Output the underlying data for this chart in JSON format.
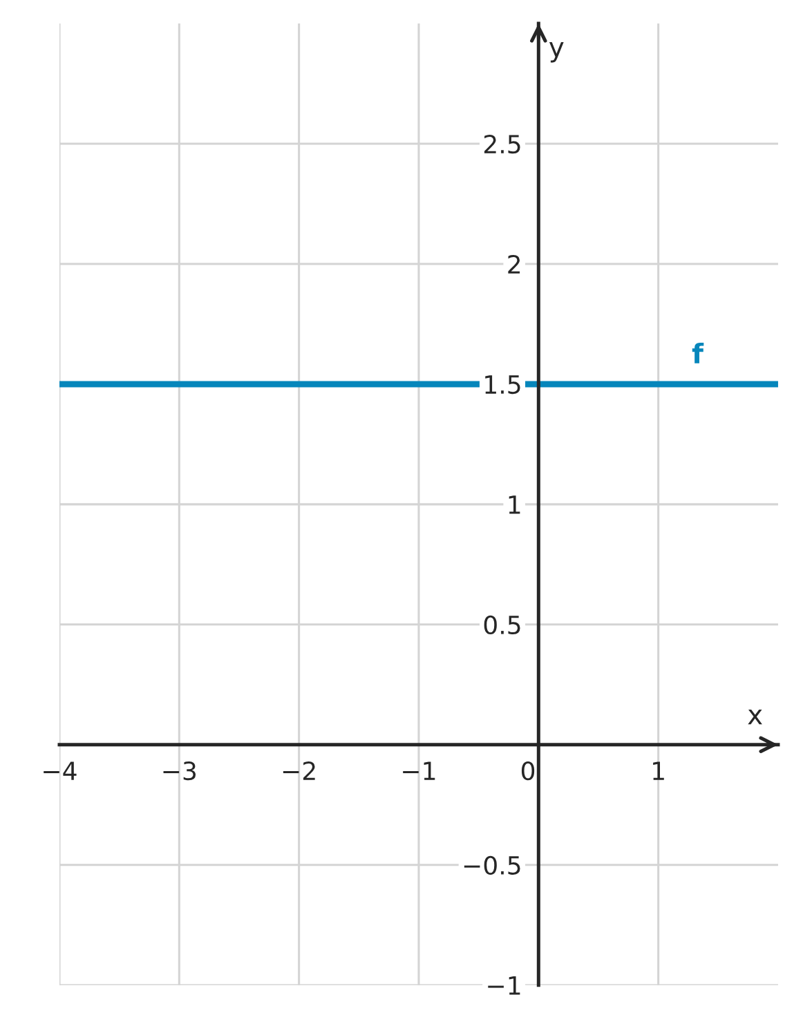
{
  "chart_data": {
    "type": "line",
    "x": [
      -4,
      2
    ],
    "series": [
      {
        "name": "f",
        "color": "#0686bb",
        "values": [
          1.5,
          1.5
        ]
      }
    ],
    "xlabel": "x",
    "ylabel": "y",
    "xlim": [
      -4,
      2
    ],
    "ylim": [
      -1,
      3
    ],
    "xticks": [
      -4,
      -3,
      -2,
      -1,
      0,
      1
    ],
    "yticks": [
      -1,
      -0.5,
      {
        "value": 0,
        "label": null
      },
      0.5,
      1,
      1.5,
      2,
      2.5
    ],
    "grid": true
  }
}
